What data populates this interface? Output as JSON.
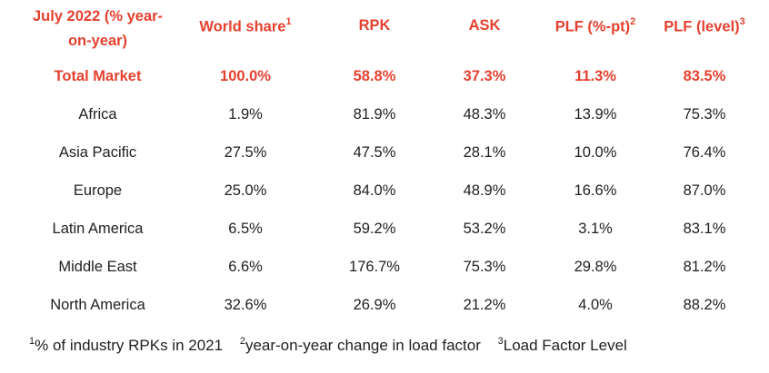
{
  "header": {
    "col0_line1": "July 2022 (% year-",
    "col0_line2": "on-year)",
    "col1": "World share",
    "col1_sup": "1",
    "col2": "RPK",
    "col3": "ASK",
    "col4": "PLF (%-pt)",
    "col4_sup": "2",
    "col5": "PLF (level)",
    "col5_sup": "3"
  },
  "rows": [
    {
      "region": "Total Market",
      "share": "100.0%",
      "rpk": "58.8%",
      "ask": "37.3%",
      "plf_pt": "11.3%",
      "plf_level": "83.5%"
    },
    {
      "region": "Africa",
      "share": "1.9%",
      "rpk": "81.9%",
      "ask": "48.3%",
      "plf_pt": "13.9%",
      "plf_level": "75.3%"
    },
    {
      "region": "Asia Pacific",
      "share": "27.5%",
      "rpk": "47.5%",
      "ask": "28.1%",
      "plf_pt": "10.0%",
      "plf_level": "76.4%"
    },
    {
      "region": "Europe",
      "share": "25.0%",
      "rpk": "84.0%",
      "ask": "48.9%",
      "plf_pt": "16.6%",
      "plf_level": "87.0%"
    },
    {
      "region": "Latin America",
      "share": "6.5%",
      "rpk": "59.2%",
      "ask": "53.2%",
      "plf_pt": "3.1%",
      "plf_level": "83.1%"
    },
    {
      "region": "Middle East",
      "share": "6.6%",
      "rpk": "176.7%",
      "ask": "75.3%",
      "plf_pt": "29.8%",
      "plf_level": "81.2%"
    },
    {
      "region": "North America",
      "share": "32.6%",
      "rpk": "26.9%",
      "ask": "21.2%",
      "plf_pt": "4.0%",
      "plf_level": "88.2%"
    }
  ],
  "footnotes": [
    {
      "sup": "1",
      "text": "% of industry RPKs in 2021"
    },
    {
      "sup": "2",
      "text": "year-on-year change in load factor"
    },
    {
      "sup": "3",
      "text": "Load Factor Level"
    }
  ],
  "colors": {
    "accent": "#e5412f",
    "text": "#202124"
  }
}
